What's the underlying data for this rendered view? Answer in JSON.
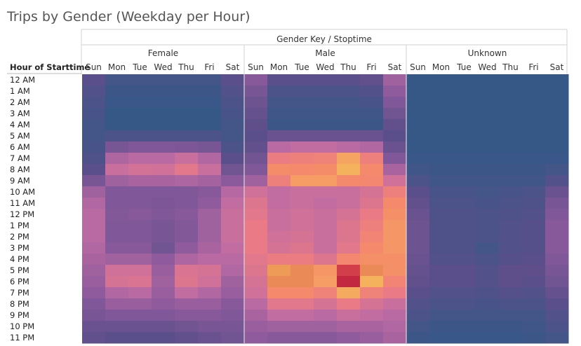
{
  "chart_data": {
    "type": "heatmap",
    "title": "Trips by Gender (Weekday per Hour)",
    "column_header": "Gender Key / Stoptime",
    "row_header": "Hour of Starttime",
    "groups": [
      "Female",
      "Male",
      "Unknown"
    ],
    "days": [
      "Sun",
      "Mon",
      "Tue",
      "Wed",
      "Thu",
      "Fri",
      "Sat"
    ],
    "hours": [
      "12 AM",
      "1 AM",
      "2 AM",
      "3 AM",
      "4 AM",
      "5 AM",
      "6 AM",
      "7 AM",
      "8 AM",
      "9 AM",
      "10 AM",
      "11 AM",
      "12 PM",
      "1 PM",
      "2 PM",
      "3 PM",
      "4 PM",
      "5 PM",
      "6 PM",
      "7 PM",
      "8 PM",
      "9 PM",
      "10 PM",
      "11 PM"
    ],
    "color_scale": [
      "#2e5a87",
      "#5c4f8a",
      "#8b5a9c",
      "#c06ca3",
      "#e97a86",
      "#f58a6a",
      "#f5b55c",
      "#d9494d",
      "#b8183c"
    ],
    "values": {
      "Female": [
        [
          0.12,
          0.06,
          0.06,
          0.06,
          0.06,
          0.06,
          0.12
        ],
        [
          0.1,
          0.04,
          0.04,
          0.04,
          0.04,
          0.04,
          0.1
        ],
        [
          0.08,
          0.03,
          0.03,
          0.03,
          0.03,
          0.03,
          0.08
        ],
        [
          0.07,
          0.02,
          0.02,
          0.02,
          0.02,
          0.02,
          0.07
        ],
        [
          0.06,
          0.02,
          0.02,
          0.02,
          0.02,
          0.02,
          0.06
        ],
        [
          0.06,
          0.08,
          0.08,
          0.08,
          0.08,
          0.08,
          0.06
        ],
        [
          0.07,
          0.2,
          0.22,
          0.22,
          0.21,
          0.2,
          0.08
        ],
        [
          0.09,
          0.33,
          0.36,
          0.36,
          0.4,
          0.34,
          0.12
        ],
        [
          0.12,
          0.4,
          0.43,
          0.42,
          0.48,
          0.4,
          0.18
        ],
        [
          0.2,
          0.3,
          0.32,
          0.32,
          0.33,
          0.31,
          0.25
        ],
        [
          0.3,
          0.22,
          0.22,
          0.22,
          0.22,
          0.24,
          0.35
        ],
        [
          0.34,
          0.22,
          0.22,
          0.21,
          0.22,
          0.26,
          0.38
        ],
        [
          0.36,
          0.23,
          0.24,
          0.22,
          0.24,
          0.3,
          0.4
        ],
        [
          0.36,
          0.22,
          0.22,
          0.2,
          0.23,
          0.3,
          0.4
        ],
        [
          0.36,
          0.22,
          0.22,
          0.2,
          0.23,
          0.3,
          0.4
        ],
        [
          0.34,
          0.24,
          0.24,
          0.18,
          0.26,
          0.32,
          0.38
        ],
        [
          0.32,
          0.3,
          0.3,
          0.26,
          0.33,
          0.36,
          0.36
        ],
        [
          0.3,
          0.42,
          0.42,
          0.28,
          0.45,
          0.44,
          0.34
        ],
        [
          0.28,
          0.44,
          0.45,
          0.3,
          0.46,
          0.42,
          0.3
        ],
        [
          0.26,
          0.34,
          0.36,
          0.28,
          0.38,
          0.34,
          0.28
        ],
        [
          0.22,
          0.28,
          0.28,
          0.26,
          0.28,
          0.28,
          0.24
        ],
        [
          0.2,
          0.22,
          0.22,
          0.22,
          0.24,
          0.24,
          0.22
        ],
        [
          0.16,
          0.16,
          0.16,
          0.16,
          0.18,
          0.2,
          0.2
        ],
        [
          0.14,
          0.12,
          0.12,
          0.12,
          0.14,
          0.16,
          0.18
        ]
      ],
      "Male": [
        [
          0.24,
          0.12,
          0.12,
          0.12,
          0.12,
          0.14,
          0.3
        ],
        [
          0.2,
          0.08,
          0.08,
          0.08,
          0.08,
          0.1,
          0.26
        ],
        [
          0.17,
          0.06,
          0.06,
          0.06,
          0.06,
          0.07,
          0.22
        ],
        [
          0.15,
          0.05,
          0.05,
          0.05,
          0.05,
          0.05,
          0.18
        ],
        [
          0.13,
          0.04,
          0.04,
          0.04,
          0.04,
          0.04,
          0.14
        ],
        [
          0.12,
          0.16,
          0.16,
          0.16,
          0.16,
          0.16,
          0.12
        ],
        [
          0.14,
          0.36,
          0.38,
          0.38,
          0.36,
          0.34,
          0.16
        ],
        [
          0.18,
          0.52,
          0.55,
          0.56,
          0.7,
          0.54,
          0.22
        ],
        [
          0.22,
          0.63,
          0.62,
          0.63,
          0.74,
          0.62,
          0.32
        ],
        [
          0.3,
          0.55,
          0.68,
          0.68,
          0.62,
          0.6,
          0.42
        ],
        [
          0.42,
          0.38,
          0.4,
          0.4,
          0.4,
          0.44,
          0.54
        ],
        [
          0.46,
          0.38,
          0.4,
          0.38,
          0.4,
          0.46,
          0.62
        ],
        [
          0.48,
          0.4,
          0.42,
          0.4,
          0.44,
          0.5,
          0.64
        ],
        [
          0.5,
          0.4,
          0.42,
          0.4,
          0.46,
          0.54,
          0.66
        ],
        [
          0.5,
          0.42,
          0.44,
          0.4,
          0.46,
          0.58,
          0.66
        ],
        [
          0.5,
          0.44,
          0.46,
          0.4,
          0.48,
          0.62,
          0.66
        ],
        [
          0.48,
          0.52,
          0.52,
          0.46,
          0.6,
          0.64,
          0.64
        ],
        [
          0.46,
          0.78,
          0.8,
          0.66,
          0.9,
          0.8,
          0.64
        ],
        [
          0.44,
          0.8,
          0.8,
          0.68,
          0.96,
          0.74,
          0.58
        ],
        [
          0.42,
          0.62,
          0.62,
          0.56,
          0.72,
          0.56,
          0.5
        ],
        [
          0.36,
          0.48,
          0.48,
          0.44,
          0.5,
          0.44,
          0.4
        ],
        [
          0.32,
          0.38,
          0.38,
          0.36,
          0.4,
          0.38,
          0.36
        ],
        [
          0.28,
          0.3,
          0.3,
          0.3,
          0.32,
          0.32,
          0.34
        ],
        [
          0.26,
          0.24,
          0.24,
          0.24,
          0.26,
          0.28,
          0.32
        ]
      ],
      "Unknown": [
        [
          0.02,
          0.02,
          0.02,
          0.02,
          0.02,
          0.02,
          0.02
        ],
        [
          0.02,
          0.02,
          0.02,
          0.02,
          0.02,
          0.02,
          0.02
        ],
        [
          0.02,
          0.02,
          0.02,
          0.02,
          0.02,
          0.02,
          0.02
        ],
        [
          0.02,
          0.02,
          0.02,
          0.02,
          0.02,
          0.02,
          0.02
        ],
        [
          0.02,
          0.02,
          0.02,
          0.02,
          0.02,
          0.02,
          0.02
        ],
        [
          0.02,
          0.02,
          0.02,
          0.02,
          0.02,
          0.02,
          0.02
        ],
        [
          0.02,
          0.02,
          0.02,
          0.02,
          0.02,
          0.02,
          0.02
        ],
        [
          0.03,
          0.03,
          0.03,
          0.03,
          0.03,
          0.03,
          0.03
        ],
        [
          0.05,
          0.04,
          0.04,
          0.04,
          0.04,
          0.04,
          0.06
        ],
        [
          0.08,
          0.05,
          0.05,
          0.05,
          0.05,
          0.05,
          0.1
        ],
        [
          0.12,
          0.07,
          0.07,
          0.06,
          0.07,
          0.08,
          0.16
        ],
        [
          0.14,
          0.08,
          0.08,
          0.07,
          0.08,
          0.09,
          0.2
        ],
        [
          0.16,
          0.09,
          0.09,
          0.08,
          0.09,
          0.1,
          0.22
        ],
        [
          0.17,
          0.09,
          0.09,
          0.08,
          0.1,
          0.11,
          0.24
        ],
        [
          0.17,
          0.09,
          0.09,
          0.08,
          0.1,
          0.11,
          0.24
        ],
        [
          0.17,
          0.09,
          0.09,
          0.06,
          0.1,
          0.11,
          0.24
        ],
        [
          0.16,
          0.1,
          0.1,
          0.08,
          0.11,
          0.12,
          0.22
        ],
        [
          0.15,
          0.12,
          0.12,
          0.1,
          0.13,
          0.13,
          0.2
        ],
        [
          0.14,
          0.12,
          0.12,
          0.1,
          0.13,
          0.12,
          0.18
        ],
        [
          0.12,
          0.1,
          0.1,
          0.09,
          0.11,
          0.1,
          0.15
        ],
        [
          0.1,
          0.08,
          0.08,
          0.07,
          0.08,
          0.08,
          0.12
        ],
        [
          0.08,
          0.06,
          0.06,
          0.06,
          0.06,
          0.06,
          0.1
        ],
        [
          0.06,
          0.04,
          0.04,
          0.04,
          0.04,
          0.05,
          0.08
        ],
        [
          0.04,
          0.03,
          0.03,
          0.03,
          0.03,
          0.04,
          0.06
        ]
      ]
    }
  }
}
